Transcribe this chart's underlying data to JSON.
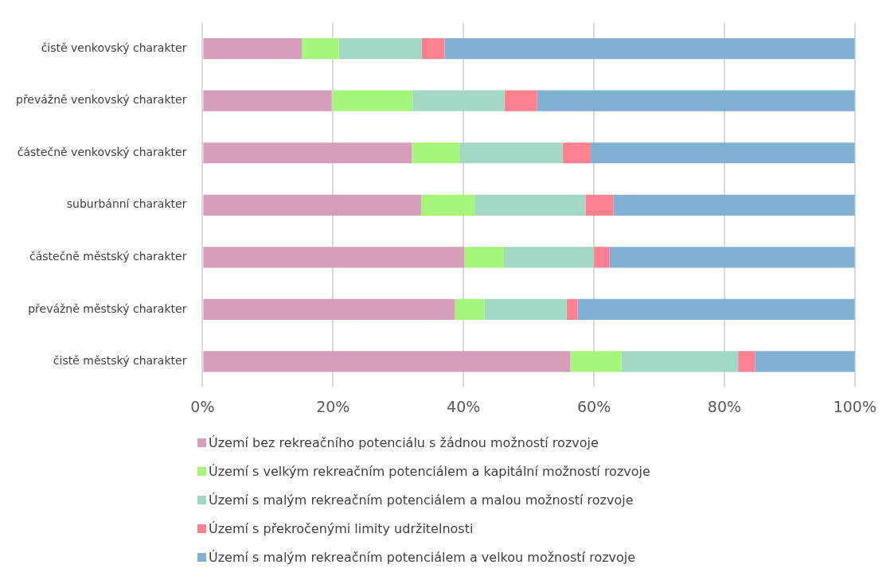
{
  "chart_data": {
    "type": "bar",
    "orientation": "horizontal",
    "stacked": true,
    "categories": [
      "čistě venkovský charakter",
      "převážně venkovský charakter",
      "částečně venkovský charakter",
      "suburbánní charakter",
      "částečně městský charakter",
      "převážně městský charakter",
      "čistě městský charakter"
    ],
    "series": [
      {
        "name": "Území bez rekreačního potenciálu s žádnou možností rozvoje",
        "color": "#d69dbd",
        "values": [
          15.2,
          19.8,
          32.1,
          33.5,
          40.1,
          38.7,
          56.4
        ]
      },
      {
        "name": "Území s velkým rekreačním potenciálem a kapitální možností rozvoje",
        "color": "#a5f57b",
        "values": [
          5.7,
          12.4,
          7.3,
          8.3,
          6.1,
          4.5,
          7.8
        ]
      },
      {
        "name": "Území s malým rekreačním potenciálem a malou možností rozvoje",
        "color": "#a0d8c3",
        "values": [
          12.7,
          14.1,
          15.8,
          16.9,
          13.8,
          12.6,
          17.9
        ]
      },
      {
        "name": "Území s překročenými limity udržitelnosti",
        "color": "#fe8190",
        "values": [
          3.5,
          5.0,
          4.3,
          4.3,
          2.4,
          1.7,
          2.6
        ]
      },
      {
        "name": "Území s malým rekreačním potenciálem a velkou možností rozvoje",
        "color": "#80b0d3",
        "values": [
          62.9,
          48.7,
          40.5,
          37.0,
          37.6,
          42.5,
          15.3
        ]
      }
    ],
    "xlim": [
      0,
      100
    ],
    "xticks": [
      {
        "value": 0,
        "label": "0%"
      },
      {
        "value": 20,
        "label": "20%"
      },
      {
        "value": 40,
        "label": "40%"
      },
      {
        "value": 60,
        "label": "60%"
      },
      {
        "value": 80,
        "label": "80%"
      },
      {
        "value": 100,
        "label": "100%"
      }
    ],
    "grid": "x",
    "legend": "bottom"
  }
}
